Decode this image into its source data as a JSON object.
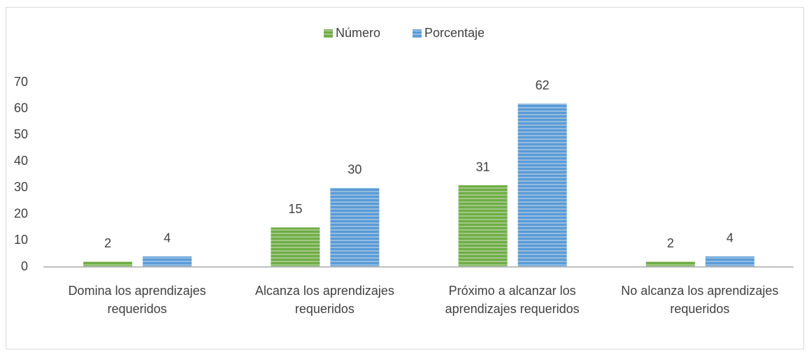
{
  "chart_data": {
    "type": "bar",
    "categories": [
      "Domina los aprendizajes requeridos",
      "Alcanza los aprendizajes requeridos",
      "Próximo a alcanzar los aprendizajes requeridos",
      "No alcanza los aprendizajes requeridos"
    ],
    "series": [
      {
        "name": "Número",
        "color": "#70ad47",
        "values": [
          2,
          15,
          31,
          2
        ]
      },
      {
        "name": "Porcentaje",
        "color": "#5b9bd5",
        "values": [
          4,
          30,
          62,
          4
        ]
      }
    ],
    "ylim": [
      0,
      70
    ],
    "yticks": [
      0,
      10,
      20,
      30,
      40,
      50,
      60,
      70
    ],
    "grid": false,
    "legend": "top"
  }
}
